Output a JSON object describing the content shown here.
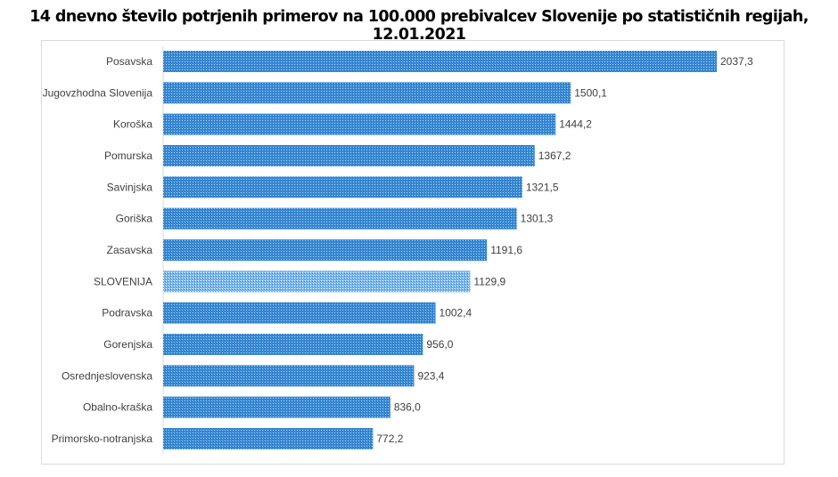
{
  "chart_data": {
    "type": "bar",
    "orientation": "horizontal",
    "title": "14 dnevno število potrjenih primerov na 100.000 prebivalcev Slovenije po statističnih regijah, 12.01.2021",
    "categories": [
      "Posavska",
      "Jugovzhodna Slovenija",
      "Koroška",
      "Pomurska",
      "Savinjska",
      "Goriška",
      "Zasavska",
      "SLOVENIJA",
      "Podravska",
      "Gorenjska",
      "Osrednjeslovenska",
      "Obalno-kraška",
      "Primorsko-notranjska"
    ],
    "values": [
      2037.3,
      1500.1,
      1444.2,
      1367.2,
      1321.5,
      1301.3,
      1191.6,
      1129.9,
      1002.4,
      956.0,
      923.4,
      836.0,
      772.2
    ],
    "data_labels": [
      "2037,3",
      "1500,1",
      "1444,2",
      "1367,2",
      "1321,5",
      "1301,3",
      "1191,6",
      "1129,9",
      "1002,4",
      "956,0",
      "923,4",
      "836,0",
      "772,2"
    ],
    "highlight_category": "SLOVENIJA",
    "colors": {
      "bar": "#3a8ad4",
      "highlight": "#6fb0e8"
    },
    "xlim": [
      0,
      2037.3
    ],
    "grid": false,
    "legend": "none"
  }
}
